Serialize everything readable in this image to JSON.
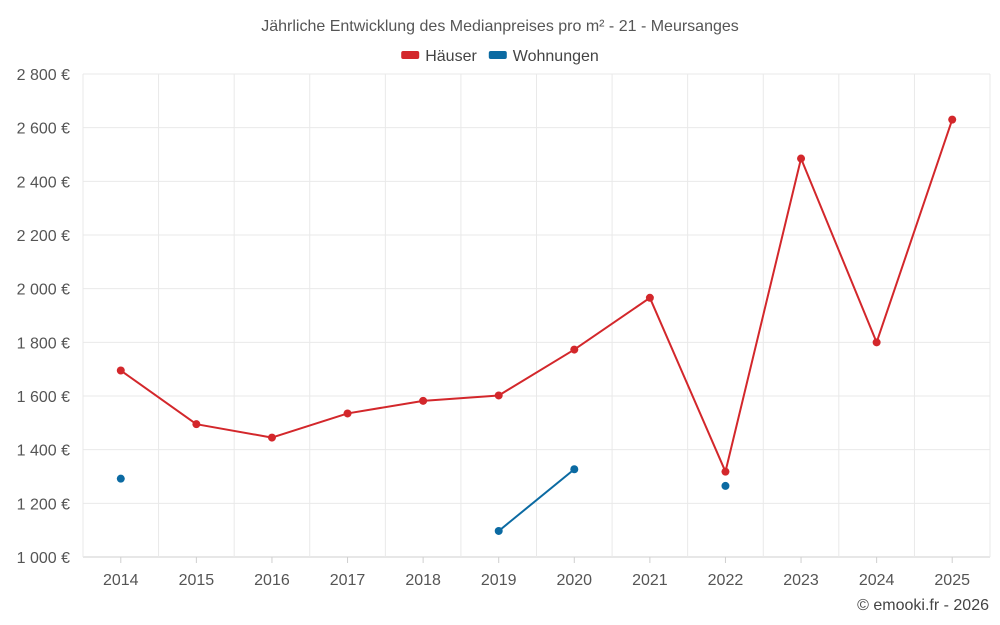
{
  "chart_data": {
    "type": "line",
    "title": "Jährliche Entwicklung des Medianpreises pro m² - 21 - Meursanges",
    "categories": [
      "2014",
      "2015",
      "2016",
      "2017",
      "2018",
      "2019",
      "2020",
      "2021",
      "2022",
      "2023",
      "2024",
      "2025"
    ],
    "ylim": [
      1000,
      2800
    ],
    "yticks": [
      1000,
      1200,
      1400,
      1600,
      1800,
      2000,
      2200,
      2400,
      2600,
      2800
    ],
    "ytick_labels": [
      "1 000 €",
      "1 200 €",
      "1 400 €",
      "1 600 €",
      "1 800 €",
      "2 000 €",
      "2 200 €",
      "2 400 €",
      "2 600 €",
      "2 800 €"
    ],
    "legend_position": "top-center",
    "grid": true,
    "series": [
      {
        "name": "Häuser",
        "color": "#d3272b",
        "values": [
          1695,
          1495,
          1445,
          1535,
          1582,
          1602,
          1773,
          1966,
          1318,
          2485,
          1800,
          2630
        ]
      },
      {
        "name": "Wohnungen",
        "color": "#0b6aa2",
        "values": [
          1292,
          null,
          null,
          null,
          null,
          1097,
          1327,
          null,
          1265,
          null,
          null,
          null
        ]
      }
    ]
  },
  "credit": "© emooki.fr - 2026"
}
